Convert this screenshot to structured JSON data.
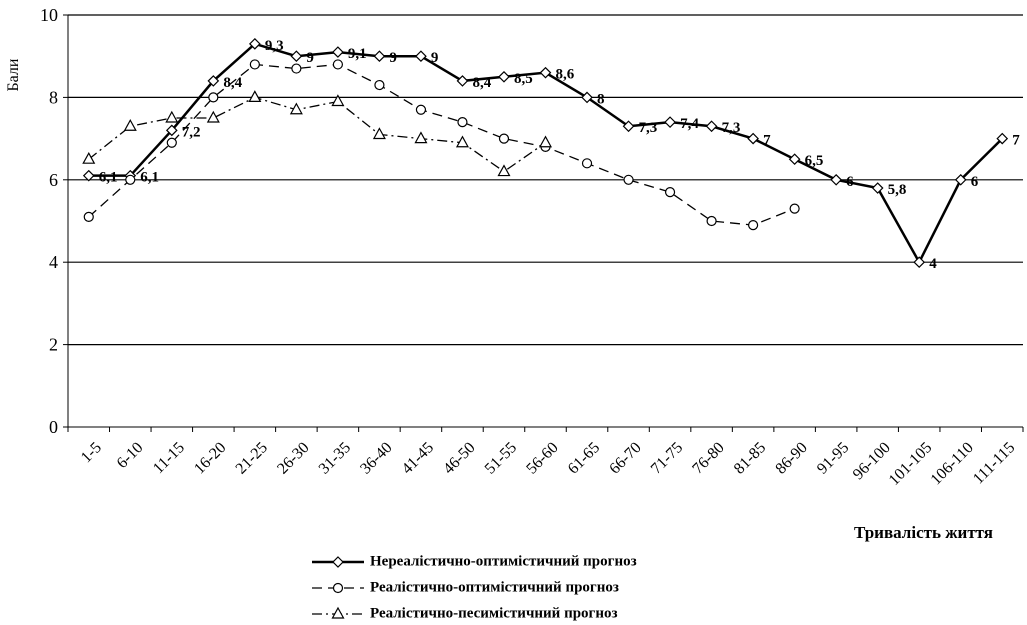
{
  "chart_data": {
    "type": "line",
    "y_label": "Бали",
    "x_label": "Тривалість життя",
    "categories": [
      "1-5",
      "6-10",
      "11-15",
      "16-20",
      "21-25",
      "26-30",
      "31-35",
      "36-40",
      "41-45",
      "46-50",
      "51-55",
      "56-60",
      "61-65",
      "66-70",
      "71-75",
      "76-80",
      "81-85",
      "86-90",
      "91-95",
      "96-100",
      "101-105",
      "106-110",
      "111-115"
    ],
    "ylim": [
      0,
      10
    ],
    "yticks": [
      0,
      2,
      4,
      6,
      8,
      10
    ],
    "grid": true,
    "legend": "bottom",
    "series": [
      {
        "name": "Нереалістично-оптимістичний прогноз",
        "color": "#000000",
        "line_style": "solid",
        "marker": "diamond",
        "values": [
          6.1,
          6.1,
          7.2,
          8.4,
          9.3,
          9,
          9.1,
          9,
          9,
          8.4,
          8.5,
          8.6,
          8,
          7.3,
          7.4,
          7.3,
          7,
          6.5,
          6,
          5.8,
          4,
          6,
          7
        ],
        "value_labels": [
          "6,1",
          "6,1",
          "7,2",
          "8,4",
          "9,3",
          "9",
          "9,1",
          "9",
          "9",
          "8,4",
          "8,5",
          "8,6",
          "8",
          "7,3",
          "7,4",
          "7,3",
          "7",
          "6,5",
          "6",
          "5,8",
          "4",
          "6",
          "7"
        ]
      },
      {
        "name": "Реалістично-оптимістичний прогноз",
        "color": "#000000",
        "line_style": "dashed",
        "marker": "circle",
        "values": [
          5.1,
          6.0,
          6.9,
          8.0,
          8.8,
          8.7,
          8.8,
          8.3,
          7.7,
          7.4,
          7.0,
          6.8,
          6.4,
          6.0,
          5.7,
          5.0,
          4.9,
          5.3,
          null,
          null,
          null,
          null,
          null
        ]
      },
      {
        "name": "Реалістично-песимістичний прогноз",
        "color": "#000000",
        "line_style": "dashdot",
        "marker": "triangle",
        "values": [
          6.5,
          7.3,
          7.5,
          7.5,
          8.0,
          7.7,
          7.9,
          7.1,
          7.0,
          6.9,
          6.2,
          6.9,
          null,
          null,
          null,
          null,
          null,
          null,
          null,
          null,
          null,
          null,
          null
        ]
      }
    ]
  }
}
